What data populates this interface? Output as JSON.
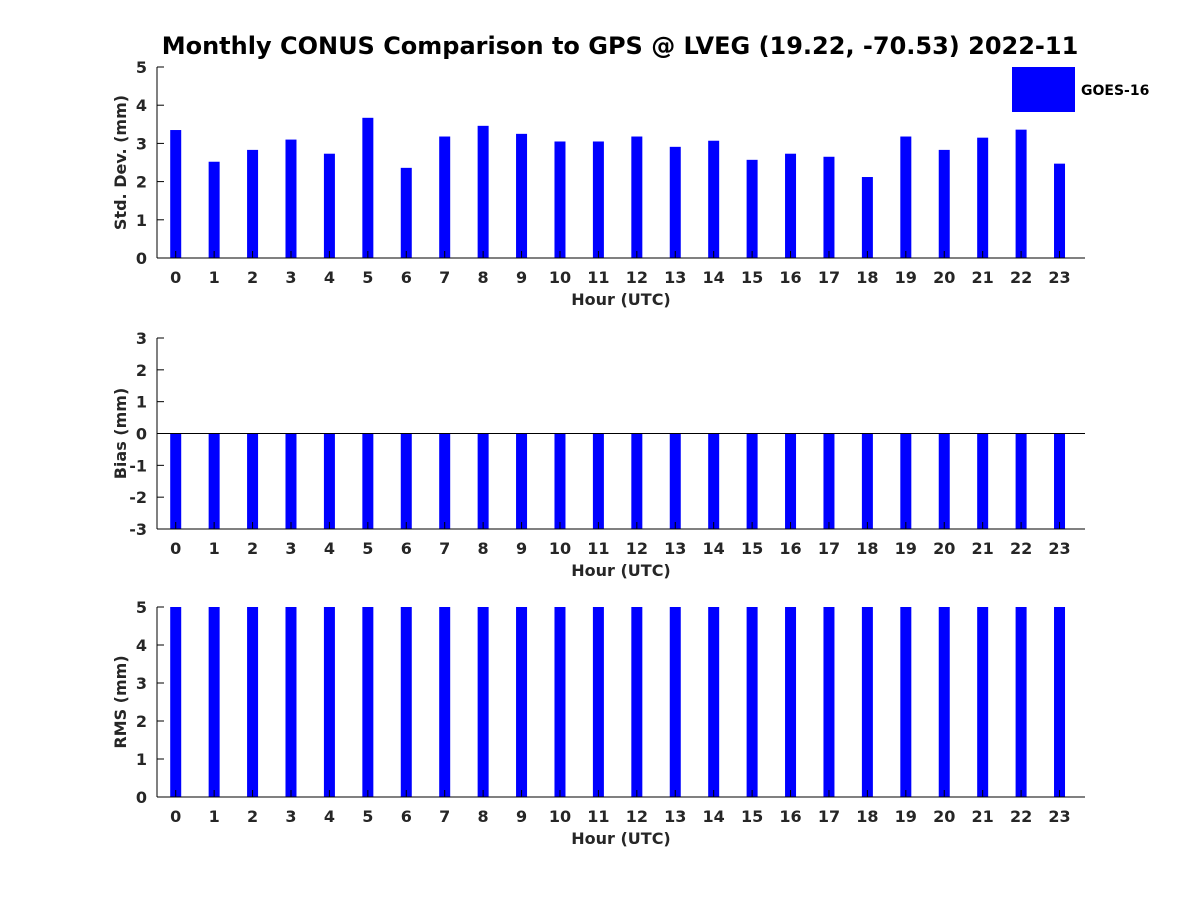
{
  "title": "Monthly CONUS Comparison to GPS @ LVEG (19.22, -70.53) 2022-11",
  "legend": {
    "label": "GOES-16",
    "color": "#0000ff",
    "placement": "top-right"
  },
  "chart_data": [
    {
      "type": "bar",
      "xlabel": "Hour (UTC)",
      "ylabel": "Std. Dev. (mm)",
      "ylim": [
        0,
        5
      ],
      "yticks": [
        0,
        1,
        2,
        3,
        4,
        5
      ],
      "categories": [
        "0",
        "1",
        "2",
        "3",
        "4",
        "5",
        "6",
        "7",
        "8",
        "9",
        "10",
        "11",
        "12",
        "13",
        "14",
        "15",
        "16",
        "17",
        "18",
        "19",
        "20",
        "21",
        "22",
        "23"
      ],
      "series": [
        {
          "name": "GOES-16",
          "color": "#0000ff",
          "values": [
            3.35,
            2.52,
            2.83,
            3.1,
            2.73,
            3.67,
            2.36,
            3.18,
            3.46,
            3.25,
            3.05,
            3.05,
            3.18,
            2.91,
            3.07,
            2.57,
            2.73,
            2.65,
            2.12,
            3.18,
            2.83,
            3.15,
            3.36,
            2.47
          ]
        }
      ]
    },
    {
      "type": "bar",
      "xlabel": "Hour (UTC)",
      "ylabel": "Bias (mm)",
      "ylim": [
        -3,
        3
      ],
      "yticks": [
        -3,
        -2,
        -1,
        0,
        1,
        2,
        3
      ],
      "zero_line": true,
      "categories": [
        "0",
        "1",
        "2",
        "3",
        "4",
        "5",
        "6",
        "7",
        "8",
        "9",
        "10",
        "11",
        "12",
        "13",
        "14",
        "15",
        "16",
        "17",
        "18",
        "19",
        "20",
        "21",
        "22",
        "23"
      ],
      "series": [
        {
          "name": "GOES-16",
          "color": "#0000ff",
          "values": [
            -3,
            -3,
            -3,
            -3,
            -3,
            -3,
            -3,
            -3,
            -3,
            -3,
            -3,
            -3,
            -3,
            -3,
            -3,
            -3,
            -3,
            -3,
            -3,
            -3,
            -3,
            -3,
            -3,
            -3
          ]
        }
      ]
    },
    {
      "type": "bar",
      "xlabel": "Hour (UTC)",
      "ylabel": "RMS (mm)",
      "ylim": [
        0,
        5
      ],
      "yticks": [
        0,
        1,
        2,
        3,
        4,
        5
      ],
      "categories": [
        "0",
        "1",
        "2",
        "3",
        "4",
        "5",
        "6",
        "7",
        "8",
        "9",
        "10",
        "11",
        "12",
        "13",
        "14",
        "15",
        "16",
        "17",
        "18",
        "19",
        "20",
        "21",
        "22",
        "23"
      ],
      "series": [
        {
          "name": "GOES-16",
          "color": "#0000ff",
          "values": [
            5,
            5,
            5,
            5,
            5,
            5,
            5,
            5,
            5,
            5,
            5,
            5,
            5,
            5,
            5,
            5,
            5,
            5,
            5,
            5,
            5,
            5,
            5,
            5
          ]
        }
      ]
    }
  ]
}
